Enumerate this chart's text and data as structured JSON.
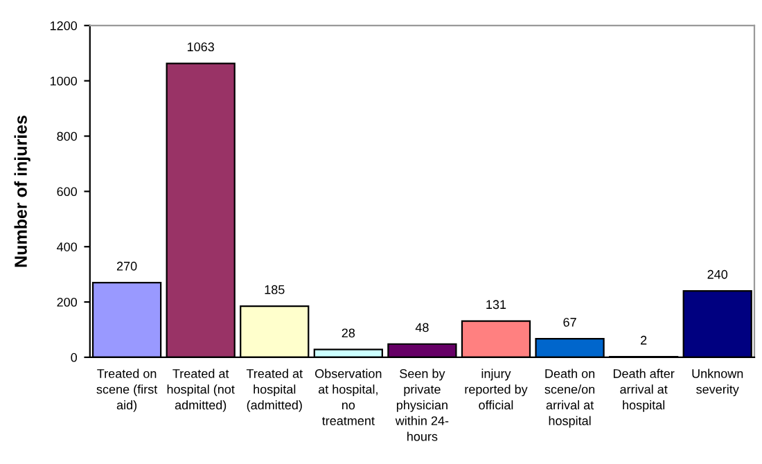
{
  "chart_data": {
    "type": "bar",
    "ylabel": "Number of injuries",
    "categories": [
      "Treated on\nscene (first\naid)",
      "Treated at\nhospital (not\nadmitted)",
      "Treated at\nhospital\n(admitted)",
      "Observation\nat hospital,\nno\ntreatment",
      "Seen by\nprivate\nphysician\nwithin 24-\nhours",
      "injury\nreported by\nofficial",
      "Death on\nscene/on\narrival at\nhospital",
      "Death after\narrival at\nhospital",
      "Unknown\nseverity"
    ],
    "values": [
      270,
      1063,
      185,
      28,
      48,
      131,
      67,
      2,
      240
    ],
    "colors": [
      "#9999ff",
      "#993366",
      "#ffffcc",
      "#ccffff",
      "#660066",
      "#ff8080",
      "#0066cc",
      "#ccccff",
      "#000080"
    ],
    "data_labels": true,
    "ylim": [
      0,
      1200
    ],
    "yticks": [
      0,
      200,
      400,
      600,
      800,
      1000,
      1200
    ],
    "grid": false,
    "legend": false
  }
}
